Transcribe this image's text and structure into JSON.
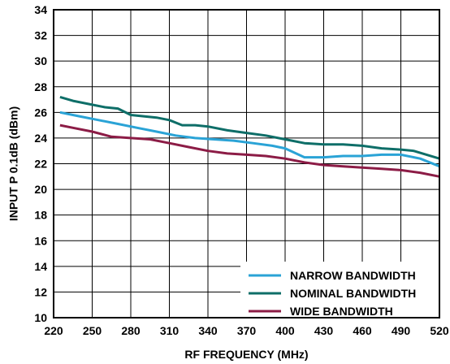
{
  "chart_data": {
    "type": "line",
    "xlabel": "RF FREQUENCY (MHz)",
    "ylabel": "INPUT P 0.1dB (dBm)",
    "xlim": [
      220,
      520
    ],
    "ylim": [
      10,
      34
    ],
    "xticks": [
      220,
      250,
      280,
      310,
      340,
      370,
      400,
      430,
      460,
      490,
      520
    ],
    "yticks": [
      10,
      12,
      14,
      16,
      18,
      20,
      22,
      24,
      26,
      28,
      30,
      32,
      34
    ],
    "grid": true,
    "legend_position": "bottom-right",
    "series": [
      {
        "name": "NARROW BANDWIDTH",
        "color": "#2aa3d6",
        "x": [
          225,
          240,
          255,
          270,
          285,
          300,
          315,
          330,
          345,
          360,
          375,
          390,
          400,
          415,
          430,
          445,
          460,
          475,
          490,
          505,
          520
        ],
        "y": [
          26.0,
          25.7,
          25.4,
          25.1,
          24.8,
          24.5,
          24.2,
          24.0,
          23.9,
          23.8,
          23.6,
          23.4,
          23.2,
          22.5,
          22.5,
          22.6,
          22.6,
          22.7,
          22.7,
          22.4,
          21.8
        ]
      },
      {
        "name": "NOMINAL BANDWIDTH",
        "color": "#0e6e68",
        "x": [
          225,
          235,
          250,
          260,
          270,
          280,
          290,
          300,
          310,
          320,
          330,
          340,
          355,
          370,
          385,
          400,
          415,
          430,
          445,
          460,
          475,
          490,
          500,
          520
        ],
        "y": [
          27.2,
          26.9,
          26.6,
          26.4,
          26.3,
          25.8,
          25.7,
          25.6,
          25.4,
          25.0,
          25.0,
          24.9,
          24.6,
          24.4,
          24.2,
          23.9,
          23.6,
          23.5,
          23.5,
          23.4,
          23.2,
          23.1,
          23.0,
          22.4
        ]
      },
      {
        "name": "WIDE BANDWIDTH",
        "color": "#8c1c46",
        "x": [
          225,
          235,
          250,
          265,
          280,
          295,
          310,
          325,
          340,
          355,
          370,
          385,
          400,
          415,
          430,
          445,
          460,
          475,
          490,
          505,
          520
        ],
        "y": [
          25.0,
          24.8,
          24.5,
          24.1,
          24.0,
          23.9,
          23.6,
          23.3,
          23.0,
          22.8,
          22.7,
          22.6,
          22.4,
          22.1,
          21.9,
          21.8,
          21.7,
          21.6,
          21.5,
          21.3,
          21.0
        ]
      }
    ]
  }
}
